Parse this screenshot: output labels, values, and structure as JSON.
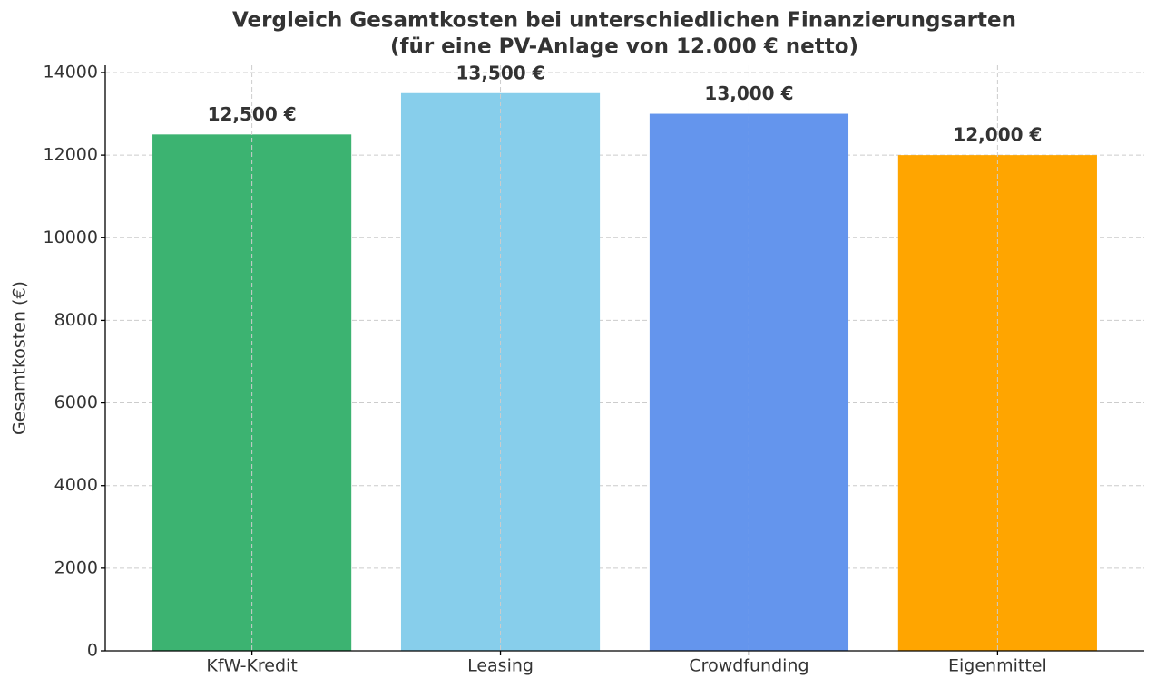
{
  "chart_data": {
    "type": "bar",
    "title": "Vergleich Gesamtkosten bei unterschiedlichen Finanzierungsarten",
    "subtitle": "(für eine PV-Anlage von 12.000 € netto)",
    "y_label": "Gesamtkosten (€)",
    "categories": [
      "KfW-Kredit",
      "Leasing",
      "Crowdfunding",
      "Eigenmittel"
    ],
    "values": [
      12500,
      13500,
      13000,
      12000
    ],
    "value_labels": [
      "12,500 €",
      "13,500 €",
      "13,000 €",
      "12,000 €"
    ],
    "colors": [
      "#3cb371",
      "#87ceeb",
      "#6495ed",
      "#ffa500"
    ],
    "ylim": [
      0,
      14175
    ],
    "yticks": [
      0,
      2000,
      4000,
      6000,
      8000,
      10000,
      12000,
      14000
    ],
    "grid": true
  }
}
